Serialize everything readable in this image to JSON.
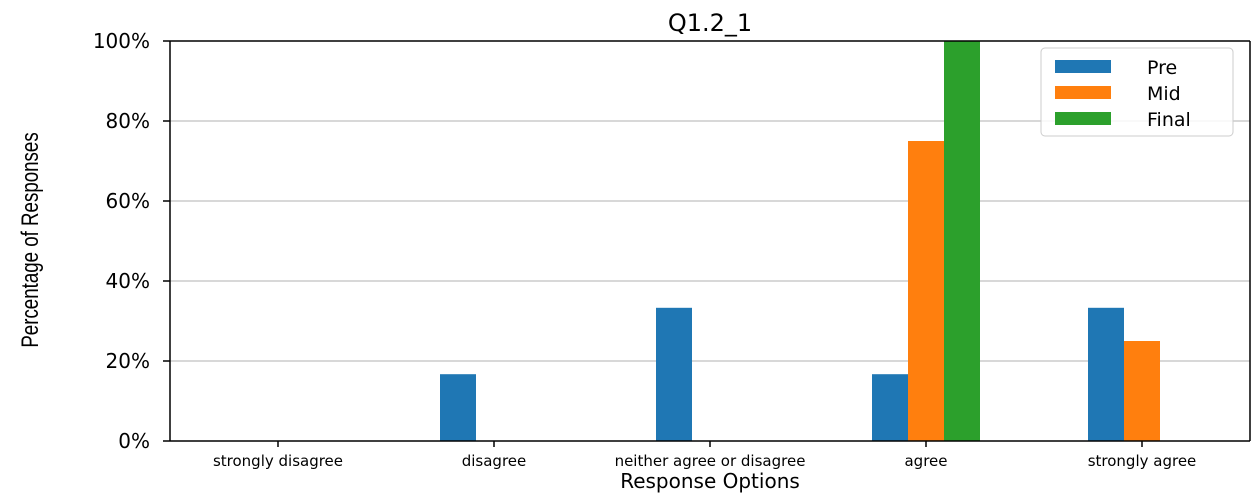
{
  "chart_data": {
    "type": "bar",
    "title": "Q1.2_1",
    "xlabel": "Response Options",
    "ylabel": "Percentage of Responses",
    "categories": [
      "strongly disagree",
      "disagree",
      "neither agree or disagree",
      "agree",
      "strongly agree"
    ],
    "series": [
      {
        "name": "Pre",
        "color": "#1f77b4",
        "values": [
          0,
          16.7,
          33.3,
          16.7,
          33.3
        ]
      },
      {
        "name": "Mid",
        "color": "#ff7f0e",
        "values": [
          0,
          0,
          0,
          75,
          25
        ]
      },
      {
        "name": "Final",
        "color": "#2ca02c",
        "values": [
          0,
          0,
          0,
          100,
          0
        ]
      }
    ],
    "ylim": [
      0,
      100
    ],
    "yticks": [
      "0%",
      "20%",
      "40%",
      "60%",
      "80%",
      "100%"
    ],
    "grid": "horizontal",
    "legend": "top-right"
  }
}
